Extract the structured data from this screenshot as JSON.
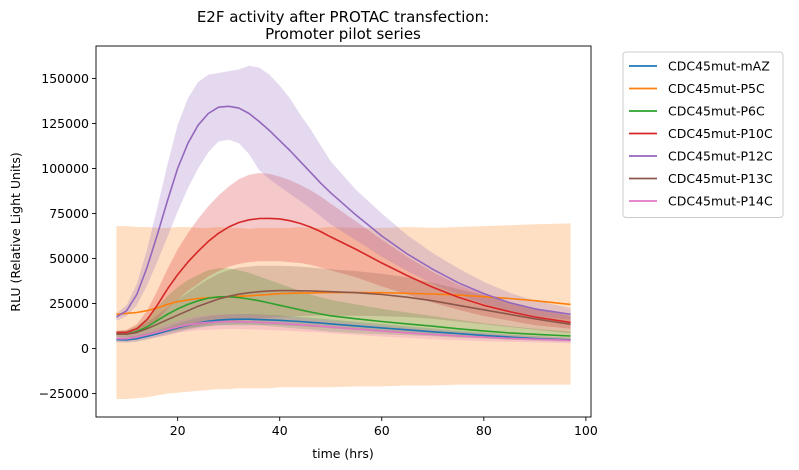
{
  "chart_data": {
    "type": "line",
    "title_lines": [
      "E2F activity after PROTAC transfection:",
      "Promoter pilot series"
    ],
    "xlabel": "time (hrs)",
    "ylabel": "RLU (Relative Light Units)",
    "xlim": [
      4,
      101
    ],
    "ylim": [
      -38000,
      168000
    ],
    "xticks": [
      20,
      40,
      60,
      80,
      100
    ],
    "yticks": [
      -25000,
      0,
      25000,
      50000,
      75000,
      100000,
      125000,
      150000
    ],
    "grid": false,
    "legend_position": "outside-upper-right",
    "band_opacity": 0.25,
    "series": [
      {
        "name": "CDC45mut-mAZ",
        "color": "#1f77b4",
        "x": [
          8,
          10,
          12,
          14,
          16,
          18,
          20,
          22,
          24,
          26,
          28,
          30,
          32,
          34,
          36,
          38,
          40,
          42,
          44,
          46,
          48,
          50,
          55,
          60,
          65,
          70,
          75,
          80,
          85,
          90,
          97
        ],
        "y": [
          5000,
          4800,
          5500,
          6800,
          8200,
          9800,
          11500,
          13000,
          14200,
          15200,
          15800,
          16200,
          16300,
          16300,
          16100,
          15900,
          15700,
          15300,
          15000,
          14600,
          14200,
          13700,
          12600,
          11500,
          10400,
          9300,
          8300,
          7300,
          6400,
          5600,
          4800
        ],
        "upper": [
          6500,
          6500,
          7200,
          8600,
          10200,
          12000,
          14000,
          15600,
          17000,
          18000,
          18700,
          19100,
          19200,
          19200,
          19000,
          18700,
          18400,
          18000,
          17600,
          17200,
          16700,
          16200,
          14900,
          13700,
          12400,
          11200,
          10000,
          8900,
          7800,
          6900,
          5900
        ],
        "lower": [
          3500,
          3300,
          3800,
          5000,
          6300,
          7700,
          9100,
          10400,
          11400,
          12400,
          12900,
          13300,
          13400,
          13400,
          13200,
          13100,
          13000,
          12600,
          12400,
          12000,
          11700,
          11200,
          10300,
          9300,
          8400,
          7400,
          6600,
          5700,
          5000,
          4300,
          3700
        ]
      },
      {
        "name": "CDC45mut-P5C",
        "color": "#ff7f0e",
        "x": [
          8,
          10,
          12,
          14,
          16,
          18,
          20,
          22,
          24,
          26,
          28,
          30,
          32,
          34,
          36,
          38,
          40,
          42,
          44,
          46,
          48,
          50,
          55,
          60,
          65,
          70,
          75,
          80,
          85,
          90,
          97
        ],
        "y": [
          19000,
          19500,
          20000,
          21000,
          22500,
          24500,
          26000,
          27000,
          27800,
          28200,
          28500,
          28700,
          29000,
          29300,
          29700,
          30100,
          30500,
          30700,
          30800,
          30900,
          31000,
          31100,
          31100,
          31000,
          30700,
          30300,
          29700,
          28800,
          27800,
          26600,
          24500
        ],
        "upper": [
          68000,
          68000,
          67500,
          67500,
          67000,
          67000,
          67500,
          67500,
          67000,
          67000,
          67500,
          67000,
          67000,
          66500,
          67000,
          67000,
          67000,
          67000,
          67500,
          67000,
          67000,
          67500,
          67000,
          67000,
          67500,
          67000,
          67500,
          68000,
          68500,
          69000,
          69500
        ],
        "lower": [
          -28000,
          -28000,
          -27500,
          -27000,
          -26000,
          -25000,
          -24500,
          -24000,
          -23500,
          -23000,
          -22500,
          -22500,
          -22000,
          -22000,
          -22000,
          -22000,
          -21500,
          -21500,
          -21500,
          -21500,
          -21500,
          -21500,
          -21000,
          -21000,
          -20500,
          -20500,
          -20000,
          -20000,
          -20000,
          -20000,
          -20000
        ]
      },
      {
        "name": "CDC45mut-P6C",
        "color": "#2ca02c",
        "x": [
          8,
          10,
          12,
          14,
          16,
          18,
          20,
          22,
          24,
          26,
          28,
          30,
          32,
          34,
          36,
          38,
          40,
          42,
          44,
          46,
          48,
          50,
          55,
          60,
          65,
          70,
          75,
          80,
          85,
          90,
          97
        ],
        "y": [
          8000,
          8000,
          9500,
          12000,
          15500,
          19000,
          22000,
          24500,
          26500,
          28000,
          28700,
          28800,
          28300,
          27500,
          26500,
          25300,
          24000,
          22800,
          21500,
          20300,
          19200,
          18200,
          16500,
          15000,
          13700,
          12400,
          11000,
          9800,
          8700,
          7900,
          7000
        ],
        "upper": [
          9500,
          10000,
          12500,
          17000,
          23000,
          29000,
          34000,
          38000,
          41000,
          43500,
          44500,
          44500,
          43500,
          42000,
          40000,
          38000,
          36000,
          34000,
          32000,
          30000,
          28500,
          27000,
          24500,
          22000,
          20000,
          18000,
          16000,
          14000,
          12500,
          11000,
          9500
        ],
        "lower": [
          6500,
          6000,
          6500,
          7000,
          8000,
          9000,
          10000,
          11000,
          12000,
          12500,
          13000,
          13000,
          13000,
          13000,
          13000,
          12500,
          12000,
          11500,
          11000,
          10600,
          10000,
          9400,
          8500,
          8000,
          7400,
          6800,
          6000,
          5600,
          5000,
          4800,
          4500
        ]
      },
      {
        "name": "CDC45mut-P10C",
        "color": "#d62728",
        "x": [
          8,
          10,
          12,
          14,
          16,
          18,
          20,
          22,
          24,
          26,
          28,
          30,
          32,
          34,
          36,
          38,
          40,
          42,
          44,
          46,
          48,
          50,
          55,
          60,
          65,
          70,
          75,
          80,
          85,
          90,
          97
        ],
        "y": [
          9000,
          9000,
          11000,
          16000,
          24000,
          33000,
          41000,
          48000,
          54000,
          59500,
          64000,
          67500,
          70000,
          71500,
          72200,
          72300,
          72000,
          71000,
          69500,
          67500,
          65000,
          62000,
          55000,
          47500,
          40500,
          34000,
          28500,
          24000,
          20500,
          17500,
          14500
        ],
        "upper": [
          10000,
          10500,
          13500,
          21000,
          32000,
          44000,
          55000,
          64000,
          72000,
          79000,
          85000,
          90000,
          94000,
          96500,
          97500,
          97000,
          95500,
          93500,
          91000,
          88000,
          84500,
          80500,
          70500,
          60500,
          51000,
          42500,
          35500,
          30000,
          25500,
          22000,
          18000
        ],
        "lower": [
          8000,
          7500,
          8500,
          11000,
          16000,
          22000,
          27000,
          32000,
          36000,
          40000,
          43000,
          45500,
          47000,
          48000,
          48500,
          48500,
          48500,
          48000,
          47500,
          46500,
          45000,
          43500,
          39500,
          34500,
          30000,
          25500,
          21500,
          18000,
          15500,
          13000,
          11000
        ]
      },
      {
        "name": "CDC45mut-P12C",
        "color": "#9467bd",
        "x": [
          8,
          10,
          12,
          14,
          16,
          18,
          20,
          22,
          24,
          26,
          28,
          30,
          32,
          34,
          36,
          38,
          40,
          42,
          44,
          46,
          48,
          50,
          55,
          60,
          65,
          70,
          75,
          80,
          85,
          90,
          97
        ],
        "y": [
          17500,
          21000,
          30000,
          45000,
          63000,
          82000,
          100000,
          114000,
          124000,
          130500,
          134000,
          134500,
          133500,
          130500,
          126000,
          121000,
          115500,
          110000,
          104000,
          98000,
          92000,
          86500,
          74000,
          62500,
          52500,
          44000,
          36500,
          30500,
          25500,
          22000,
          19000
        ],
        "upper": [
          19500,
          24000,
          36000,
          55000,
          78000,
          102000,
          124000,
          139000,
          148000,
          152000,
          153000,
          154000,
          155000,
          157000,
          156000,
          152000,
          146000,
          139000,
          130000,
          122000,
          113000,
          104000,
          88000,
          75000,
          63000,
          53000,
          44500,
          37000,
          31000,
          26500,
          22500
        ],
        "lower": [
          15500,
          18000,
          24000,
          35000,
          48000,
          62000,
          76000,
          89000,
          100000,
          109000,
          115000,
          116000,
          114000,
          108000,
          99000,
          94000,
          90000,
          86000,
          82000,
          78000,
          73500,
          69000,
          60000,
          51000,
          43000,
          36000,
          30000,
          25000,
          21000,
          18000,
          16000
        ]
      },
      {
        "name": "CDC45mut-P13C",
        "color": "#8c564b",
        "x": [
          8,
          10,
          12,
          14,
          16,
          18,
          20,
          22,
          24,
          26,
          28,
          30,
          32,
          34,
          36,
          38,
          40,
          42,
          44,
          46,
          48,
          50,
          55,
          60,
          65,
          70,
          75,
          80,
          85,
          90,
          97
        ],
        "y": [
          8000,
          8000,
          9000,
          11000,
          13500,
          16000,
          18500,
          21000,
          23500,
          25500,
          27500,
          29000,
          30200,
          31000,
          31600,
          32000,
          32200,
          32200,
          32100,
          32000,
          31800,
          31600,
          31000,
          30000,
          28500,
          26500,
          24000,
          21500,
          19000,
          16500,
          13500
        ],
        "upper": [
          9500,
          9800,
          11500,
          14500,
          18500,
          22500,
          27000,
          31000,
          35000,
          38500,
          41500,
          43500,
          45000,
          45500,
          46000,
          46000,
          46000,
          45800,
          45500,
          45000,
          44500,
          44000,
          43000,
          41500,
          39500,
          36500,
          33000,
          29500,
          26000,
          22500,
          18500
        ],
        "lower": [
          6500,
          6200,
          6500,
          7500,
          8500,
          9500,
          10500,
          11500,
          12500,
          13500,
          14500,
          15000,
          15500,
          16000,
          16500,
          17000,
          17500,
          17800,
          18000,
          18200,
          18300,
          18300,
          18200,
          18000,
          17500,
          16500,
          15000,
          13500,
          12000,
          10500,
          8500
        ]
      },
      {
        "name": "CDC45mut-P14C",
        "color": "#e377c2",
        "x": [
          8,
          10,
          12,
          14,
          16,
          18,
          20,
          22,
          24,
          26,
          28,
          30,
          32,
          34,
          36,
          38,
          40,
          42,
          44,
          46,
          48,
          50,
          55,
          60,
          65,
          70,
          75,
          80,
          85,
          90,
          97
        ],
        "y": [
          5500,
          5500,
          6300,
          7600,
          9000,
          10500,
          12000,
          13200,
          14000,
          14500,
          14800,
          14900,
          14900,
          14800,
          14600,
          14300,
          14000,
          13600,
          13200,
          12800,
          12400,
          11900,
          10800,
          9700,
          8700,
          7800,
          7000,
          6300,
          5700,
          5200,
          4600
        ],
        "upper": [
          7000,
          7200,
          8200,
          9800,
          11600,
          13500,
          15300,
          16800,
          17800,
          18500,
          18900,
          19000,
          19000,
          18900,
          18600,
          18300,
          17900,
          17400,
          16900,
          16400,
          15900,
          15300,
          14000,
          12700,
          11500,
          10400,
          9400,
          8500,
          7700,
          7000,
          6200
        ],
        "lower": [
          4000,
          3800,
          4400,
          5400,
          6400,
          7500,
          8700,
          9600,
          10200,
          10500,
          10700,
          10800,
          10800,
          10700,
          10600,
          10300,
          10100,
          9800,
          9500,
          9200,
          8900,
          8500,
          7600,
          6700,
          5900,
          5200,
          4600,
          4100,
          3700,
          3400,
          3000
        ]
      }
    ]
  }
}
